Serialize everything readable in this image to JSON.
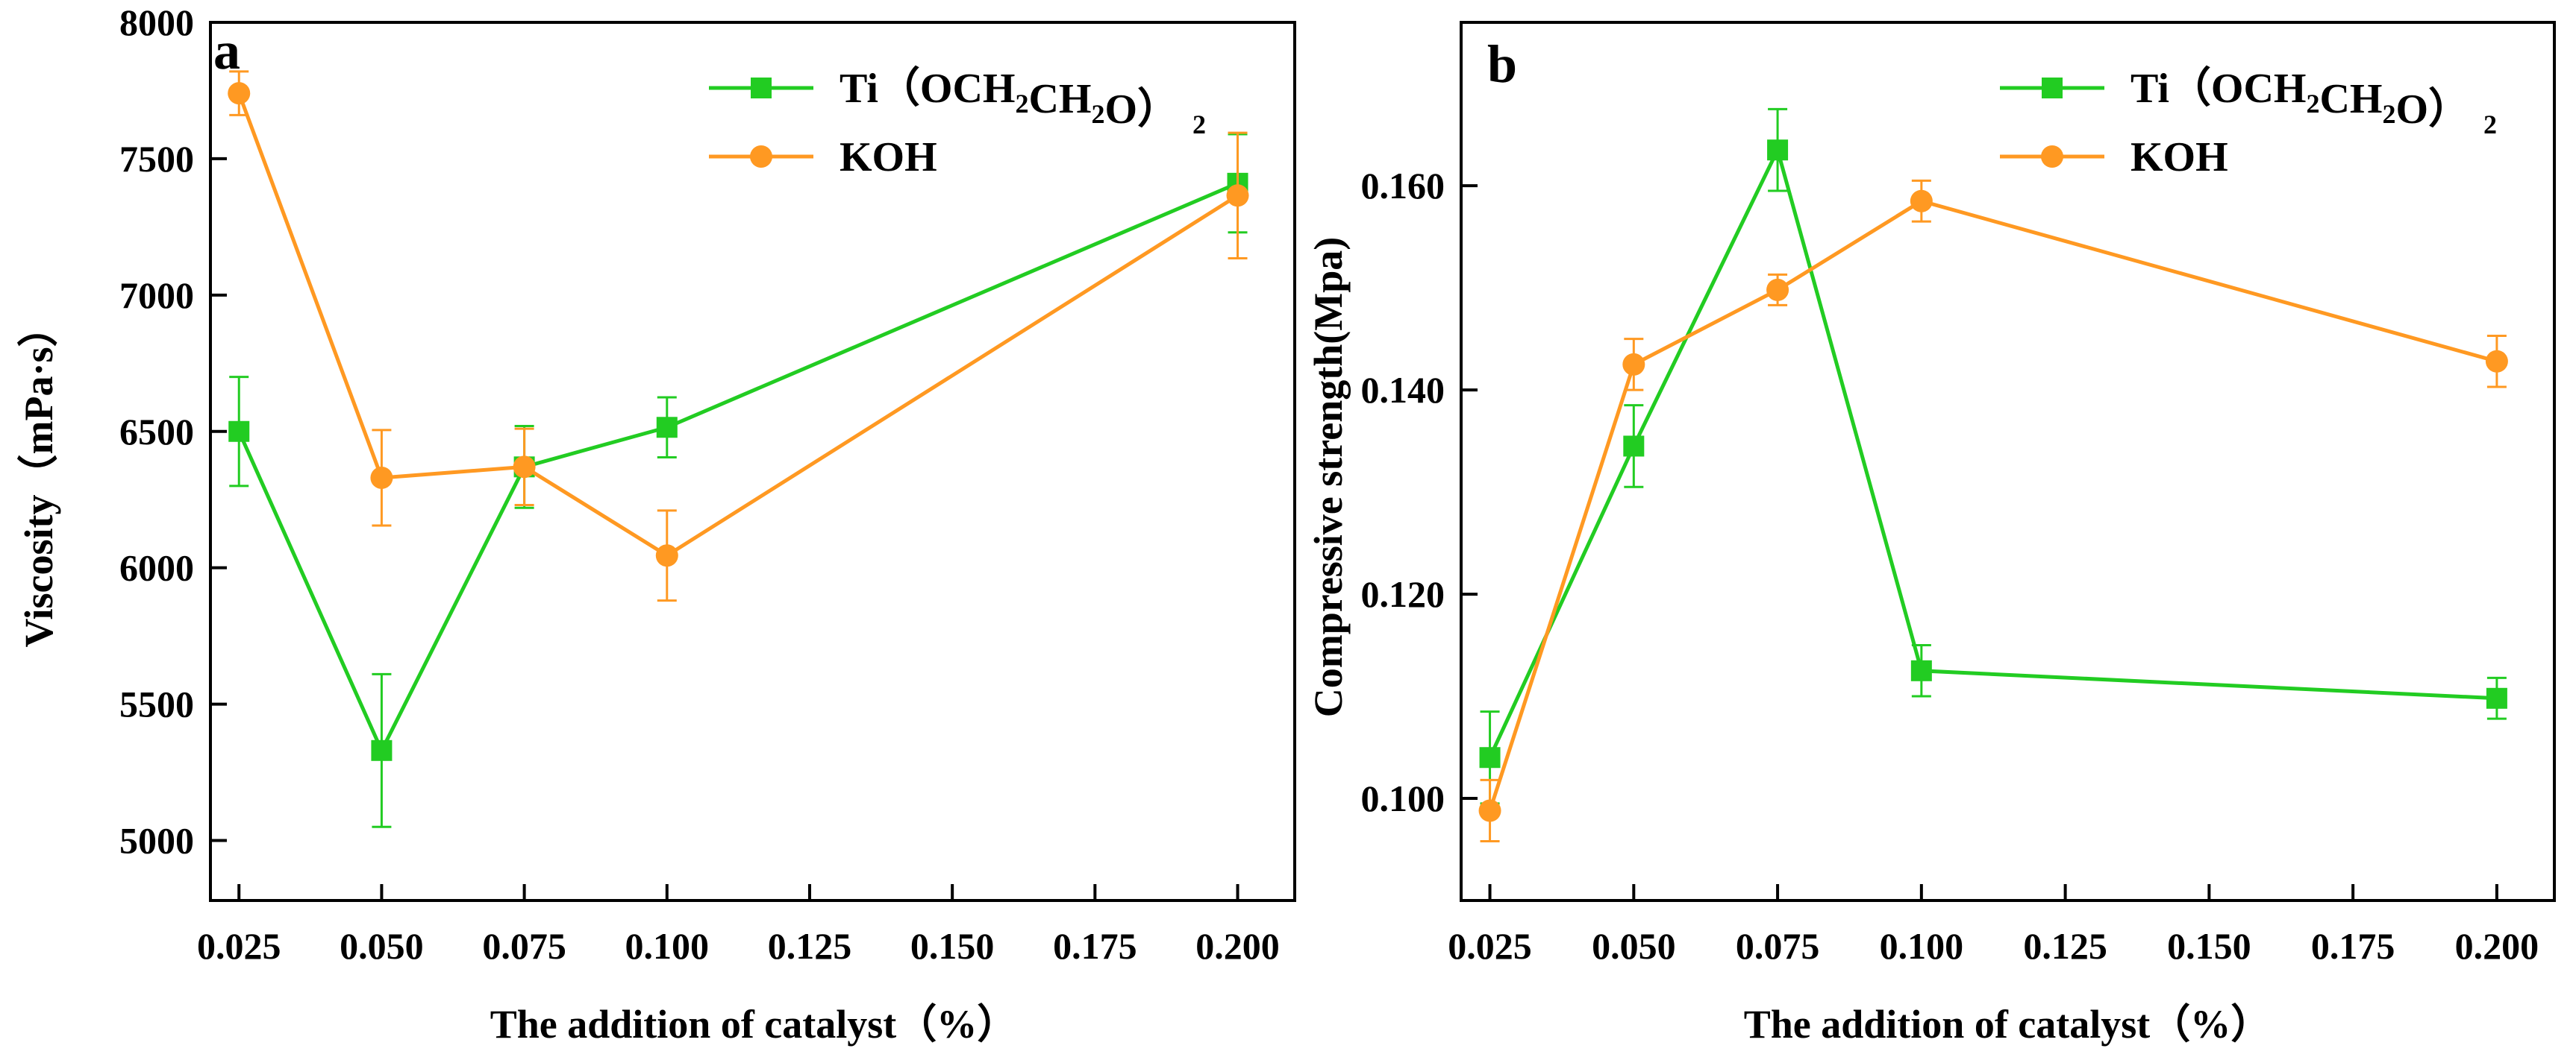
{
  "colors": {
    "ti": "#22cc22",
    "koh": "#ff9922",
    "axis": "#000000"
  },
  "chart_data": [
    {
      "type": "line",
      "panel_label": "a",
      "xlabel": "The addition of catalyst（%）",
      "ylabel": "Viscosity（mPa·s）",
      "xlim": [
        0.02,
        0.21
      ],
      "ylim": [
        4780,
        8000
      ],
      "x_ticks": [
        0.025,
        0.05,
        0.075,
        0.1,
        0.125,
        0.15,
        0.175,
        0.2
      ],
      "x_tick_labels": [
        "0.025",
        "0.050",
        "0.075",
        "0.100",
        "0.125",
        "0.150",
        "0.175",
        "0.200"
      ],
      "y_ticks": [
        5000,
        5500,
        6000,
        6500,
        7000,
        7500,
        8000
      ],
      "y_tick_labels": [
        "5000",
        "5500",
        "6000",
        "6500",
        "7000",
        "7500",
        "8000"
      ],
      "legend_position": "top-right",
      "grid": false,
      "series": [
        {
          "key": "ti",
          "marker": "square",
          "legend": {
            "main": "Ti（OCH",
            "sub1": "2",
            "mid": "CH",
            "sub2": "2",
            "tail": "O）",
            "sub3": "2"
          },
          "x": [
            0.025,
            0.05,
            0.075,
            0.1,
            0.2
          ],
          "y": [
            6500,
            5330,
            6370,
            6515,
            7410
          ],
          "err": [
            200,
            280,
            150,
            110,
            180
          ]
        },
        {
          "key": "koh",
          "marker": "circle",
          "legend": {
            "main": "KOH"
          },
          "x": [
            0.025,
            0.05,
            0.075,
            0.1,
            0.2
          ],
          "y": [
            7740,
            6330,
            6370,
            6045,
            7365
          ],
          "err": [
            80,
            175,
            140,
            165,
            230
          ]
        }
      ]
    },
    {
      "type": "line",
      "panel_label": "b",
      "xlabel": "The addition of catalyst（%）",
      "ylabel": "Compressive strength(Mpa)",
      "xlim": [
        0.02,
        0.21
      ],
      "ylim": [
        0.09,
        0.176
      ],
      "x_ticks": [
        0.025,
        0.05,
        0.075,
        0.1,
        0.125,
        0.15,
        0.175,
        0.2
      ],
      "x_tick_labels": [
        "0.025",
        "0.050",
        "0.075",
        "0.100",
        "0.125",
        "0.150",
        "0.175",
        "0.200"
      ],
      "y_ticks": [
        0.1,
        0.12,
        0.14,
        0.16
      ],
      "y_tick_labels": [
        "0.100",
        "0.120",
        "0.140",
        "0.160"
      ],
      "legend_position": "top-right",
      "grid": false,
      "series": [
        {
          "key": "ti",
          "marker": "square",
          "legend": {
            "main": "Ti（OCH",
            "sub1": "2",
            "mid": "CH",
            "sub2": "2",
            "tail": "O）",
            "sub3": "2"
          },
          "x": [
            0.025,
            0.05,
            0.075,
            0.1,
            0.2
          ],
          "y": [
            0.104,
            0.1345,
            0.1635,
            0.1125,
            0.1098
          ],
          "err": [
            0.0045,
            0.004,
            0.004,
            0.0025,
            0.002
          ]
        },
        {
          "key": "koh",
          "marker": "circle",
          "legend": {
            "main": "KOH"
          },
          "x": [
            0.025,
            0.05,
            0.075,
            0.1,
            0.2
          ],
          "y": [
            0.0988,
            0.1425,
            0.1498,
            0.1585,
            0.1428
          ],
          "err": [
            0.003,
            0.0025,
            0.0015,
            0.002,
            0.0025
          ]
        }
      ]
    }
  ]
}
